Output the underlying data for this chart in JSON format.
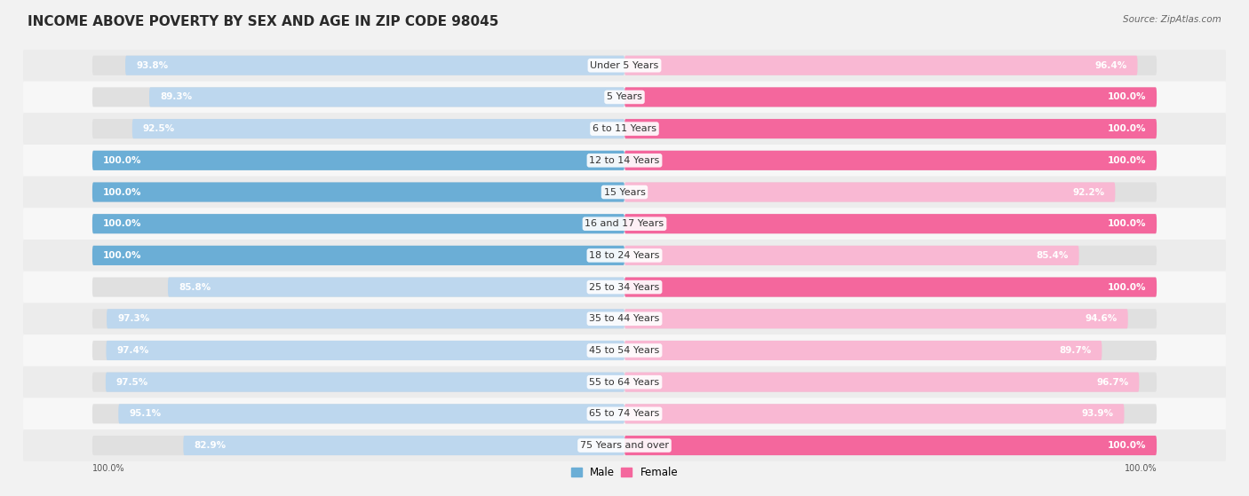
{
  "title": "INCOME ABOVE POVERTY BY SEX AND AGE IN ZIP CODE 98045",
  "source": "Source: ZipAtlas.com",
  "categories": [
    "Under 5 Years",
    "5 Years",
    "6 to 11 Years",
    "12 to 14 Years",
    "15 Years",
    "16 and 17 Years",
    "18 to 24 Years",
    "25 to 34 Years",
    "35 to 44 Years",
    "45 to 54 Years",
    "55 to 64 Years",
    "65 to 74 Years",
    "75 Years and over"
  ],
  "male_values": [
    93.8,
    89.3,
    92.5,
    100.0,
    100.0,
    100.0,
    100.0,
    85.8,
    97.3,
    97.4,
    97.5,
    95.1,
    82.9
  ],
  "female_values": [
    96.4,
    100.0,
    100.0,
    100.0,
    92.2,
    100.0,
    85.4,
    100.0,
    94.6,
    89.7,
    96.7,
    93.9,
    100.0
  ],
  "male_full_color": "#6BAED6",
  "male_light_color": "#BDD7EE",
  "female_full_color": "#F4679D",
  "female_light_color": "#F9B8D3",
  "row_colors": [
    "#ECECEC",
    "#F7F7F7"
  ],
  "bg_color": "#F2F2F2",
  "bar_track_color": "#E0E0E0",
  "title_fontsize": 11,
  "label_fontsize": 8,
  "value_fontsize": 7.5,
  "source_fontsize": 7.5,
  "axis_label_fontsize": 7
}
